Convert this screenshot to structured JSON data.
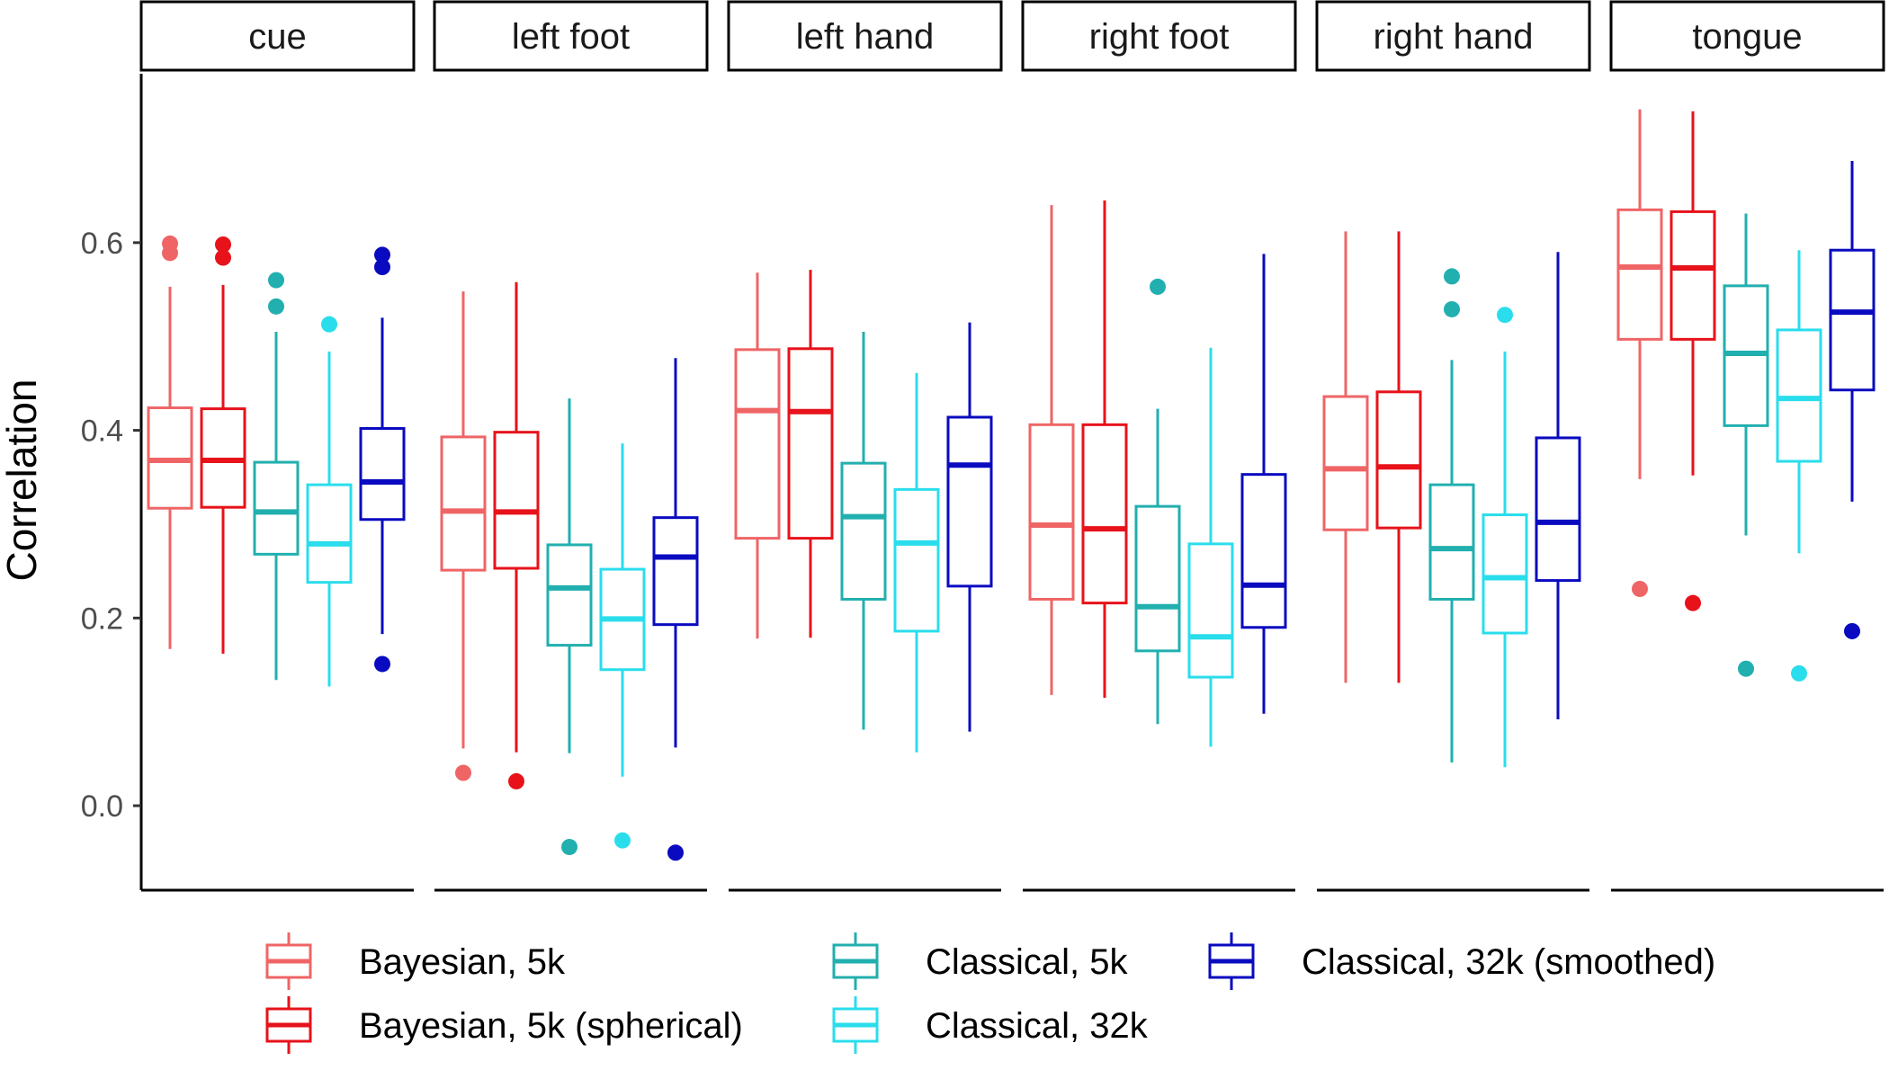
{
  "chart_data": {
    "type": "boxplot",
    "ylabel": "Correlation",
    "ylim": [
      -0.09,
      0.78
    ],
    "yticks": [
      0.0,
      0.2,
      0.4,
      0.6
    ],
    "ytick_labels": [
      "0.0",
      "0.2",
      "0.4",
      "0.6"
    ],
    "facets": [
      "cue",
      "left foot",
      "left hand",
      "right foot",
      "right hand",
      "tongue"
    ],
    "series": [
      {
        "name": "Bayesian, 5k",
        "color": "#EF6566"
      },
      {
        "name": "Bayesian, 5k (spherical)",
        "color": "#E7121A"
      },
      {
        "name": "Classical, 5k",
        "color": "#22AFAF"
      },
      {
        "name": "Classical, 32k",
        "color": "#2ADDEC"
      },
      {
        "name": "Classical, 32k (smoothed)",
        "color": "#0A0AC0"
      }
    ],
    "boxes": [
      [
        {
          "min": 0.167,
          "q1": 0.317,
          "median": 0.368,
          "q3": 0.424,
          "max": 0.553,
          "outliers": [
            0.589,
            0.599
          ]
        },
        {
          "min": 0.162,
          "q1": 0.318,
          "median": 0.368,
          "q3": 0.423,
          "max": 0.555,
          "outliers": [
            0.584,
            0.598
          ]
        },
        {
          "min": 0.134,
          "q1": 0.268,
          "median": 0.313,
          "q3": 0.366,
          "max": 0.505,
          "outliers": [
            0.532,
            0.56
          ]
        },
        {
          "min": 0.127,
          "q1": 0.238,
          "median": 0.279,
          "q3": 0.342,
          "max": 0.484,
          "outliers": [
            0.513
          ]
        },
        {
          "min": 0.183,
          "q1": 0.305,
          "median": 0.345,
          "q3": 0.402,
          "max": 0.52,
          "outliers": [
            0.151,
            0.574,
            0.587
          ]
        }
      ],
      [
        {
          "min": 0.061,
          "q1": 0.251,
          "median": 0.314,
          "q3": 0.393,
          "max": 0.548,
          "outliers": [
            0.035
          ]
        },
        {
          "min": 0.057,
          "q1": 0.253,
          "median": 0.313,
          "q3": 0.398,
          "max": 0.558,
          "outliers": [
            0.026
          ]
        },
        {
          "min": 0.056,
          "q1": 0.171,
          "median": 0.232,
          "q3": 0.278,
          "max": 0.434,
          "outliers": [
            -0.044
          ]
        },
        {
          "min": 0.031,
          "q1": 0.145,
          "median": 0.199,
          "q3": 0.252,
          "max": 0.386,
          "outliers": [
            -0.037
          ]
        },
        {
          "min": 0.062,
          "q1": 0.193,
          "median": 0.265,
          "q3": 0.307,
          "max": 0.477,
          "outliers": [
            -0.05
          ]
        }
      ],
      [
        {
          "min": 0.178,
          "q1": 0.285,
          "median": 0.421,
          "q3": 0.486,
          "max": 0.568,
          "outliers": []
        },
        {
          "min": 0.179,
          "q1": 0.285,
          "median": 0.42,
          "q3": 0.487,
          "max": 0.571,
          "outliers": []
        },
        {
          "min": 0.081,
          "q1": 0.22,
          "median": 0.308,
          "q3": 0.365,
          "max": 0.505,
          "outliers": []
        },
        {
          "min": 0.057,
          "q1": 0.186,
          "median": 0.28,
          "q3": 0.337,
          "max": 0.461,
          "outliers": []
        },
        {
          "min": 0.079,
          "q1": 0.234,
          "median": 0.363,
          "q3": 0.414,
          "max": 0.515,
          "outliers": []
        }
      ],
      [
        {
          "min": 0.118,
          "q1": 0.22,
          "median": 0.299,
          "q3": 0.406,
          "max": 0.64,
          "outliers": []
        },
        {
          "min": 0.115,
          "q1": 0.216,
          "median": 0.295,
          "q3": 0.406,
          "max": 0.645,
          "outliers": []
        },
        {
          "min": 0.087,
          "q1": 0.165,
          "median": 0.212,
          "q3": 0.319,
          "max": 0.423,
          "outliers": [
            0.553
          ]
        },
        {
          "min": 0.063,
          "q1": 0.137,
          "median": 0.18,
          "q3": 0.279,
          "max": 0.488,
          "outliers": []
        },
        {
          "min": 0.098,
          "q1": 0.19,
          "median": 0.235,
          "q3": 0.353,
          "max": 0.588,
          "outliers": []
        }
      ],
      [
        {
          "min": 0.131,
          "q1": 0.294,
          "median": 0.359,
          "q3": 0.436,
          "max": 0.612,
          "outliers": []
        },
        {
          "min": 0.131,
          "q1": 0.296,
          "median": 0.361,
          "q3": 0.441,
          "max": 0.612,
          "outliers": []
        },
        {
          "min": 0.046,
          "q1": 0.22,
          "median": 0.274,
          "q3": 0.342,
          "max": 0.475,
          "outliers": [
            0.529,
            0.564
          ]
        },
        {
          "min": 0.041,
          "q1": 0.184,
          "median": 0.243,
          "q3": 0.31,
          "max": 0.484,
          "outliers": [
            0.523
          ]
        },
        {
          "min": 0.092,
          "q1": 0.24,
          "median": 0.302,
          "q3": 0.392,
          "max": 0.59,
          "outliers": []
        }
      ],
      [
        {
          "min": 0.348,
          "q1": 0.497,
          "median": 0.574,
          "q3": 0.635,
          "max": 0.742,
          "outliers": [
            0.231
          ]
        },
        {
          "min": 0.352,
          "q1": 0.497,
          "median": 0.573,
          "q3": 0.633,
          "max": 0.74,
          "outliers": [
            0.216
          ]
        },
        {
          "min": 0.288,
          "q1": 0.405,
          "median": 0.482,
          "q3": 0.554,
          "max": 0.631,
          "outliers": [
            0.146
          ]
        },
        {
          "min": 0.269,
          "q1": 0.367,
          "median": 0.434,
          "q3": 0.507,
          "max": 0.592,
          "outliers": [
            0.141
          ]
        },
        {
          "min": 0.324,
          "q1": 0.443,
          "median": 0.526,
          "q3": 0.592,
          "max": 0.687,
          "outliers": [
            0.186
          ]
        }
      ]
    ],
    "legend_position": "bottom"
  }
}
